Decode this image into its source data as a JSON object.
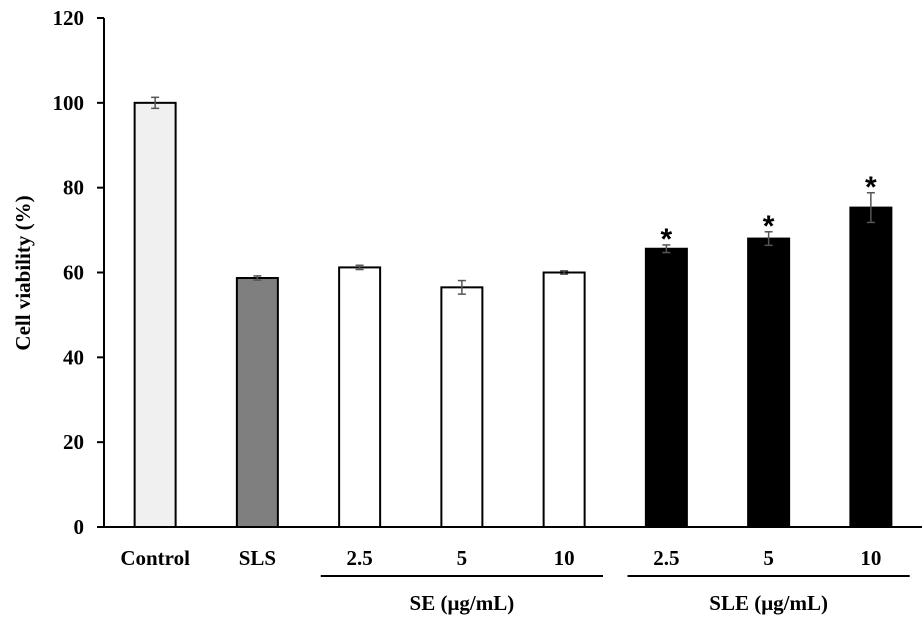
{
  "chart_data": {
    "type": "bar",
    "title": "",
    "xlabel": "",
    "ylabel": "Cell viability (%)",
    "ylim": [
      0,
      120
    ],
    "yticks": [
      0,
      20,
      40,
      60,
      80,
      100,
      120
    ],
    "grid": false,
    "legend": "none",
    "categories": [
      "Control",
      "SLS",
      "2.5",
      "5",
      "10",
      "2.5",
      "5",
      "10"
    ],
    "values": [
      100,
      58.7,
      61.2,
      56.5,
      60.0,
      65.6,
      68.0,
      75.3
    ],
    "errors": [
      1.3,
      0.5,
      0.5,
      1.6,
      0.4,
      0.9,
      1.6,
      3.5
    ],
    "significant": [
      false,
      false,
      false,
      false,
      false,
      true,
      true,
      true
    ],
    "significance_marker": "*",
    "bar_colors": [
      "#f0f0f0",
      "#7f7f7f",
      "#ffffff",
      "#ffffff",
      "#ffffff",
      "#000000",
      "#000000",
      "#000000"
    ],
    "groups": [
      {
        "label": "SE (μg/mL)",
        "start_index": 2,
        "end_index": 4
      },
      {
        "label": "SLE (μg/mL)",
        "start_index": 5,
        "end_index": 7
      }
    ]
  }
}
